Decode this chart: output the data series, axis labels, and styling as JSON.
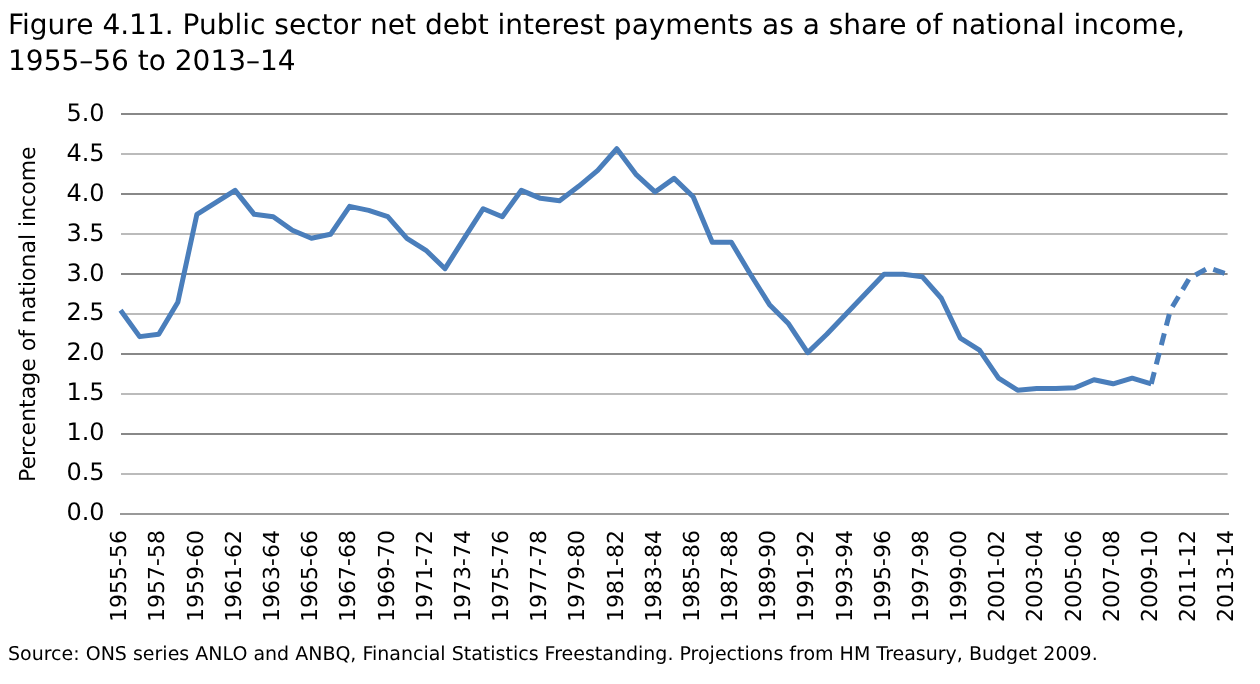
{
  "chart_data": {
    "type": "line",
    "title": "Figure 4.11. Public sector net debt interest payments as a share of national income, 1955–56 to 2013–14",
    "ylabel": "Percentage of national income",
    "annotations": [
      "Source: ONS series ANLO and ANBQ, Financial Statistics Freestanding. Projections from HM Treasury, Budget 2009."
    ],
    "categories": [
      "1955-56",
      null,
      "1957-58",
      null,
      "1959-60",
      null,
      "1961-62",
      null,
      "1963-64",
      null,
      "1965-66",
      null,
      "1967-68",
      null,
      "1969-70",
      null,
      "1971-72",
      null,
      "1973-74",
      null,
      "1975-76",
      null,
      "1977-78",
      null,
      "1979-80",
      null,
      "1981-82",
      null,
      "1983-84",
      null,
      "1985-86",
      null,
      "1987-88",
      null,
      "1989-90",
      null,
      "1991-92",
      null,
      "1993-94",
      null,
      "1995-96",
      null,
      "1997-98",
      null,
      "1999-00",
      null,
      "2001-02",
      null,
      "2003-04",
      null,
      "2005-06",
      null,
      "2007-08",
      null,
      "2009-10",
      null,
      "2011-12",
      null,
      "2013-14"
    ],
    "series": [
      {
        "color": "#4a7ebb",
        "line_style": "solid",
        "values": [
          2.55,
          2.22,
          2.25,
          2.65,
          3.75,
          3.9,
          4.05,
          3.75,
          3.72,
          3.55,
          3.45,
          3.5,
          3.85,
          3.8,
          3.72,
          3.45,
          3.3,
          3.07,
          3.45,
          3.82,
          3.72,
          4.05,
          3.95,
          3.92,
          4.1,
          4.3,
          4.57,
          4.25,
          4.03,
          4.2,
          3.97,
          3.4,
          3.4,
          3.0,
          2.62,
          2.38,
          2.02,
          2.25,
          2.5,
          2.75,
          3.0,
          3.0,
          2.97,
          2.7,
          2.2,
          2.05,
          1.7,
          1.55,
          1.57,
          1.57,
          1.58,
          1.68,
          1.63,
          1.7,
          1.63,
          null,
          null,
          null,
          null
        ]
      },
      {
        "color": "#4a7ebb",
        "line_style": "dashed",
        "values": [
          null,
          null,
          null,
          null,
          null,
          null,
          null,
          null,
          null,
          null,
          null,
          null,
          null,
          null,
          null,
          null,
          null,
          null,
          null,
          null,
          null,
          null,
          null,
          null,
          null,
          null,
          null,
          null,
          null,
          null,
          null,
          null,
          null,
          null,
          null,
          null,
          null,
          null,
          null,
          null,
          null,
          null,
          null,
          null,
          null,
          null,
          null,
          null,
          null,
          null,
          null,
          null,
          null,
          null,
          1.63,
          2.55,
          2.95,
          3.08,
          3.0
        ]
      }
    ],
    "ylim": [
      0,
      5
    ],
    "yticks": [
      {
        "value": 0,
        "label": "0.0"
      },
      {
        "value": 0.5,
        "label": "0.5"
      },
      {
        "value": 1,
        "label": "1.0"
      },
      {
        "value": 1.5,
        "label": "1.5"
      },
      {
        "value": 2,
        "label": "2.0"
      },
      {
        "value": 2.5,
        "label": "2.5"
      },
      {
        "value": 3,
        "label": "3.0"
      },
      {
        "value": 3.5,
        "label": "3.5"
      },
      {
        "value": 4,
        "label": "4.0"
      },
      {
        "value": 4.5,
        "label": "4.5"
      },
      {
        "value": 5,
        "label": "5.0"
      }
    ],
    "grid": "y",
    "legend": false,
    "marker": "none"
  }
}
